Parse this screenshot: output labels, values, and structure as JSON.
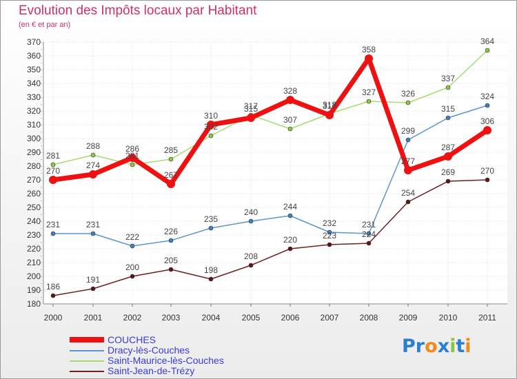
{
  "title": "Evolution des Impôts locaux par Habitant",
  "subtitle": "(en € et par an)",
  "logo": {
    "letters": [
      "P",
      "r",
      "o",
      "x",
      "i",
      "t",
      "i"
    ],
    "colors": [
      "#2b7fd0",
      "#2b7fd0",
      "#f08a1a",
      "#2b7fd0",
      "#8cc63f",
      "#2b7fd0",
      "#f08a1a"
    ]
  },
  "chart_data": {
    "type": "line",
    "title": "Evolution des Impôts locaux par Habitant",
    "subtitle": "(en € et par an)",
    "xlabel": "",
    "ylabel": "",
    "x": [
      "2000",
      "2001",
      "2002",
      "2003",
      "2004",
      "2005",
      "2006",
      "2007",
      "2008",
      "2009",
      "2010",
      "2011"
    ],
    "ylim": [
      180,
      370
    ],
    "yticks": [
      180,
      190,
      200,
      210,
      220,
      230,
      240,
      250,
      260,
      270,
      280,
      290,
      300,
      310,
      320,
      330,
      340,
      350,
      360,
      370
    ],
    "grid": true,
    "legend_position": "bottom-left",
    "series": [
      {
        "name": "Saint-Jean-de-Trézy",
        "color": "#6e1f22",
        "marker": "#5a1517",
        "values": [
          186,
          191,
          200,
          205,
          198,
          208,
          220,
          223,
          224,
          254,
          269,
          270
        ],
        "labels": [
          "186",
          "191",
          "200",
          "205",
          "198",
          "208",
          "220",
          "223",
          "224",
          "254",
          "269",
          "270"
        ]
      },
      {
        "name": "Dracy-lès-Couches",
        "color": "#5b95cf",
        "marker": "#3f7fc2",
        "values": [
          231,
          231,
          222,
          226,
          235,
          240,
          244,
          232,
          231,
          299,
          315,
          324
        ],
        "labels": [
          "231",
          "231",
          "222",
          "226",
          "235",
          "240",
          "244",
          "232",
          "231",
          "299",
          "315",
          "324"
        ]
      },
      {
        "name": "Saint-Maurice-lès-Couches",
        "color": "#a6dc72",
        "marker": "#8cc93f",
        "values": [
          281,
          288,
          281,
          285,
          302,
          317,
          307,
          318,
          327,
          326,
          337,
          364
        ],
        "labels": [
          "281",
          "288",
          "281",
          "285",
          "302",
          "317",
          "307",
          "318",
          "327",
          "326",
          "337",
          "364"
        ]
      },
      {
        "name": "COUCHES",
        "color": "#ee1111",
        "marker": "#ee1111",
        "values": [
          270,
          274,
          286,
          267,
          310,
          315,
          328,
          317,
          358,
          277,
          287,
          306
        ],
        "labels": [
          "270",
          "274",
          "286",
          "267",
          "310",
          "315",
          "328",
          "317",
          "358",
          "277",
          "287",
          "306"
        ]
      }
    ],
    "legend": [
      {
        "name": "COUCHES",
        "color": "#ee1111",
        "thickness": 8
      },
      {
        "name": "Dracy-lès-Couches",
        "color": "#5b95cf",
        "thickness": 2
      },
      {
        "name": "Saint-Maurice-lès-Couches",
        "color": "#a6dc72",
        "thickness": 2
      },
      {
        "name": "Saint-Jean-de-Trézy",
        "color": "#6e1f22",
        "thickness": 2
      }
    ]
  }
}
